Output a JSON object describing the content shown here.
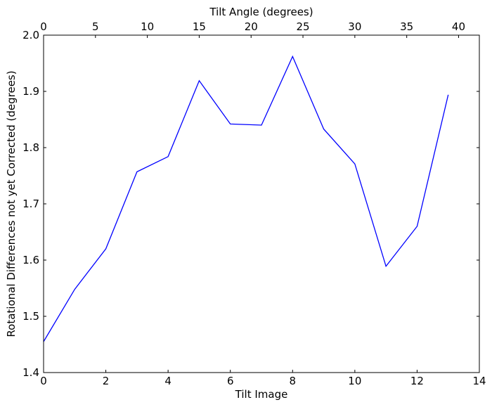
{
  "chart_data": {
    "type": "line",
    "title": "",
    "xlabel": "Tilt Image",
    "ylabel": "Rotational Differences not yet Corrected (degrees)",
    "secondary_xlabel": "Tilt Angle (degrees)",
    "xlim": [
      0,
      14
    ],
    "ylim": [
      1.4,
      2.0
    ],
    "secondary_xlim": [
      0,
      42
    ],
    "x_ticks": [
      0,
      2,
      4,
      6,
      8,
      10,
      12,
      14
    ],
    "y_ticks": [
      1.4,
      1.5,
      1.6,
      1.7,
      1.8,
      1.9,
      2.0
    ],
    "secondary_x_ticks": [
      0,
      5,
      10,
      15,
      20,
      25,
      30,
      35,
      40
    ],
    "x_tick_labels": [
      "0",
      "2",
      "4",
      "6",
      "8",
      "10",
      "12",
      "14"
    ],
    "y_tick_labels": [
      "1.4",
      "1.5",
      "1.6",
      "1.7",
      "1.8",
      "1.9",
      "2.0"
    ],
    "secondary_x_tick_labels": [
      "0",
      "5",
      "10",
      "15",
      "20",
      "25",
      "30",
      "35",
      "40"
    ],
    "grid": false,
    "legend": "none",
    "series": [
      {
        "color": "#0000ff",
        "x": [
          0,
          1,
          2,
          3,
          4,
          5,
          6,
          7,
          8,
          9,
          10,
          11,
          12,
          13
        ],
        "values": [
          1.455,
          1.548,
          1.62,
          1.757,
          1.784,
          1.919,
          1.842,
          1.84,
          1.962,
          1.833,
          1.771,
          1.589,
          1.66,
          1.894
        ]
      }
    ]
  }
}
